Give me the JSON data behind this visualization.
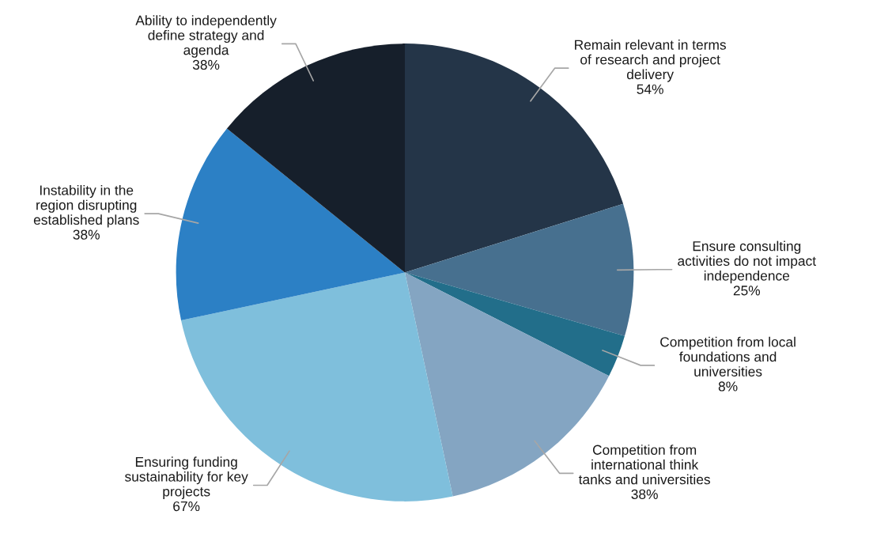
{
  "chart_data": {
    "type": "pie",
    "categories": [
      "Remain relevant in terms of research and project delivery",
      "Ensure consulting activities do not impact independence",
      "Competition from local foundations and universities",
      "Competition from international think tanks and universities",
      "Ensuring funding sustainability for key projects",
      "Instability in the region disrupting established plans",
      "Ability to independently define strategy and agenda"
    ],
    "values": [
      54,
      25,
      8,
      38,
      67,
      38,
      38
    ],
    "value_labels": [
      "54%",
      "25%",
      "8%",
      "38%",
      "67%",
      "38%",
      "38%"
    ],
    "colors": [
      "#243548",
      "#47708f",
      "#226e8a",
      "#84a5c2",
      "#7fbfdc",
      "#2c80c5",
      "#161f2b"
    ],
    "legend": false
  }
}
